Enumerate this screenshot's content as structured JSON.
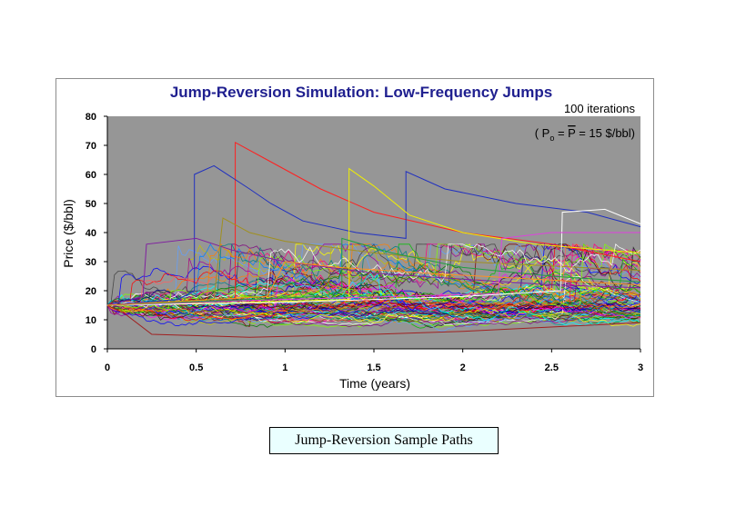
{
  "chart_data": {
    "type": "line",
    "title": "Jump-Reversion Simulation: Low-Frequency Jumps",
    "xlabel": "Time (years)",
    "ylabel": "Price ($/bbl)",
    "xlim": [
      0,
      3
    ],
    "ylim": [
      0,
      80
    ],
    "xticks": [
      "0",
      "0.5",
      "1",
      "1.5",
      "2",
      "2.5",
      "3"
    ],
    "yticks": [
      "0",
      "10",
      "20",
      "30",
      "40",
      "50",
      "60",
      "70",
      "80"
    ],
    "grid": false,
    "annotations": {
      "iterations": "100 iterations",
      "equation_open": "( P",
      "equation_sub": "o",
      "equation_mid": " = ",
      "equation_pbar": "P",
      "equation_rest": " = 15 $/bbl)"
    },
    "initial_price": 15,
    "iterations": 100,
    "highlighted_series": [
      {
        "name": "path-red-top",
        "color": "#ff2020",
        "points": [
          [
            0,
            15
          ],
          [
            0.5,
            16
          ],
          [
            0.72,
            17
          ],
          [
            0.72,
            71
          ],
          [
            0.9,
            65
          ],
          [
            1.2,
            55
          ],
          [
            1.5,
            47
          ],
          [
            2.0,
            40
          ],
          [
            2.5,
            36
          ],
          [
            3,
            30
          ]
        ]
      },
      {
        "name": "path-blue-high",
        "color": "#2030c0",
        "points": [
          [
            0,
            15
          ],
          [
            0.4,
            17
          ],
          [
            0.49,
            20
          ],
          [
            0.49,
            60
          ],
          [
            0.6,
            63
          ],
          [
            0.8,
            55
          ],
          [
            0.92,
            50
          ],
          [
            1.1,
            44
          ],
          [
            1.4,
            40
          ],
          [
            1.68,
            38
          ],
          [
            1.68,
            61
          ],
          [
            1.9,
            55
          ],
          [
            2.3,
            50
          ],
          [
            2.7,
            47
          ],
          [
            3,
            42
          ]
        ]
      },
      {
        "name": "path-yellow",
        "color": "#f0f000",
        "points": [
          [
            0,
            15
          ],
          [
            0.8,
            16
          ],
          [
            1.36,
            17
          ],
          [
            1.36,
            62
          ],
          [
            1.5,
            56
          ],
          [
            1.7,
            46
          ],
          [
            2.0,
            40
          ],
          [
            2.4,
            36
          ],
          [
            3,
            33
          ]
        ]
      },
      {
        "name": "path-purple",
        "color": "#8020a0",
        "points": [
          [
            0,
            15
          ],
          [
            0.2,
            18
          ],
          [
            0.22,
            36
          ],
          [
            0.5,
            38
          ],
          [
            0.7,
            34
          ],
          [
            1.0,
            30
          ],
          [
            1.5,
            26
          ],
          [
            2.0,
            24
          ],
          [
            2.5,
            22
          ],
          [
            3,
            21
          ]
        ]
      },
      {
        "name": "path-olive",
        "color": "#a09020",
        "points": [
          [
            0,
            15
          ],
          [
            0.6,
            17
          ],
          [
            0.65,
            45
          ],
          [
            0.8,
            40
          ],
          [
            1.0,
            37
          ],
          [
            1.5,
            33
          ],
          [
            2.0,
            30
          ],
          [
            3,
            27
          ]
        ]
      },
      {
        "name": "path-white-right",
        "color": "#ffffff",
        "points": [
          [
            0,
            15
          ],
          [
            1.0,
            16
          ],
          [
            2.0,
            18
          ],
          [
            2.55,
            20
          ],
          [
            2.56,
            47
          ],
          [
            2.8,
            48
          ],
          [
            3,
            43
          ]
        ]
      },
      {
        "name": "path-magenta",
        "color": "#e040e0",
        "points": [
          [
            0,
            15
          ],
          [
            1.0,
            17
          ],
          [
            2.2,
            19
          ],
          [
            2.22,
            38
          ],
          [
            2.5,
            40
          ],
          [
            3,
            40
          ]
        ]
      },
      {
        "name": "path-green-mid",
        "color": "#20a040",
        "points": [
          [
            0,
            15
          ],
          [
            1.2,
            18
          ],
          [
            1.32,
            20
          ],
          [
            1.32,
            38
          ],
          [
            1.6,
            33
          ],
          [
            2.0,
            28
          ],
          [
            2.5,
            25
          ],
          [
            3,
            23
          ]
        ]
      },
      {
        "name": "path-darkred-low",
        "color": "#a02020",
        "points": [
          [
            0,
            15
          ],
          [
            0.1,
            12
          ],
          [
            0.25,
            5
          ],
          [
            0.8,
            4
          ],
          [
            1.5,
            5
          ],
          [
            2.0,
            6
          ],
          [
            3,
            9
          ]
        ]
      },
      {
        "name": "path-orange",
        "color": "#ff9020",
        "points": [
          [
            0,
            15
          ],
          [
            0.9,
            18
          ],
          [
            1.0,
            30
          ],
          [
            1.3,
            28
          ],
          [
            1.8,
            26
          ],
          [
            2.4,
            24
          ],
          [
            3,
            22
          ]
        ]
      }
    ]
  },
  "caption": "Jump-Reversion Sample Paths"
}
